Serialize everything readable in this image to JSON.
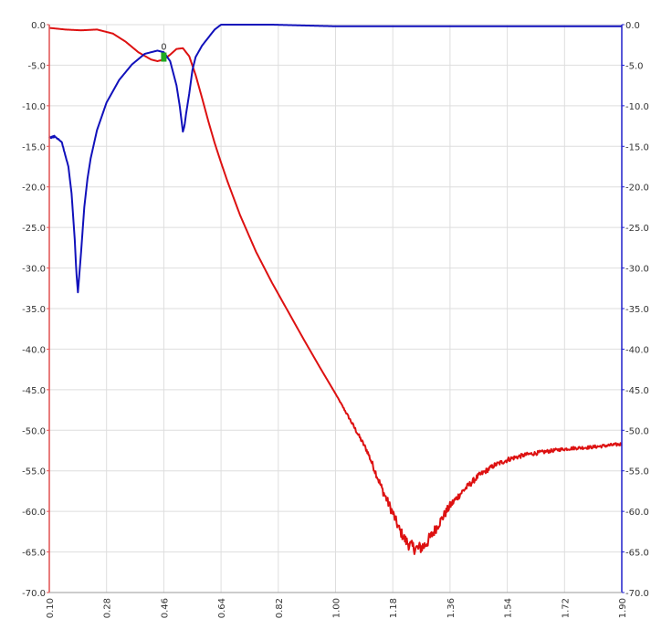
{
  "chart_data": {
    "type": "line",
    "title": "",
    "xlabel": "",
    "ylabel_left": "",
    "ylabel_right": "",
    "grid": true,
    "legend": "none",
    "xlim": [
      0.1,
      1.9
    ],
    "ylim_left": [
      -70,
      0
    ],
    "ylim_right": [
      -70,
      0
    ],
    "x_ticks": [
      "0.10",
      "0.28",
      "0.46",
      "0.64",
      "0.82",
      "1.00",
      "1.18",
      "1.36",
      "1.54",
      "1.72",
      "1.90"
    ],
    "y_ticks_left": [
      "0.0",
      "-5.0",
      "-10.0",
      "-15.0",
      "-20.0",
      "-25.0",
      "-30.0",
      "-35.0",
      "-40.0",
      "-45.0",
      "-50.0",
      "-55.0",
      "-60.0",
      "-65.0",
      "-70.0"
    ],
    "y_ticks_right": [
      "0.0",
      "-5.0",
      "-10.0",
      "-15.0",
      "-20.0",
      "-25.0",
      "-30.0",
      "-35.0",
      "-40.0",
      "-45.0",
      "-50.0",
      "-55.0",
      "-60.0",
      "-65.0",
      "-70.0"
    ],
    "left_axis_color": "#e05050",
    "right_axis_color": "#2020cc",
    "series": [
      {
        "color": "#dd1111",
        "axis": "left",
        "x": [
          0.1,
          0.15,
          0.2,
          0.25,
          0.3,
          0.34,
          0.38,
          0.42,
          0.44,
          0.46,
          0.48,
          0.5,
          0.52,
          0.54,
          0.56,
          0.58,
          0.6,
          0.62,
          0.64,
          0.66,
          0.7,
          0.75,
          0.8,
          0.85,
          0.9,
          0.95,
          1.0,
          1.05,
          1.1,
          1.12,
          1.15,
          1.18,
          1.2,
          1.22,
          1.24,
          1.26,
          1.28,
          1.3,
          1.32,
          1.36,
          1.4,
          1.45,
          1.5,
          1.55,
          1.6,
          1.65,
          1.7,
          1.75,
          1.8,
          1.85,
          1.9
        ],
        "y": [
          -0.4,
          -0.6,
          -0.7,
          -0.6,
          -1.1,
          -2.1,
          -3.4,
          -4.3,
          -4.5,
          -4.3,
          -3.7,
          -3.0,
          -2.9,
          -3.9,
          -6.2,
          -9.0,
          -11.9,
          -14.6,
          -17.0,
          -19.3,
          -23.5,
          -28.0,
          -31.8,
          -35.3,
          -38.8,
          -42.2,
          -45.5,
          -49.0,
          -52.6,
          -54.6,
          -57.6,
          -60.2,
          -62.2,
          -63.6,
          -64.4,
          -64.6,
          -64.2,
          -63.1,
          -61.8,
          -59.3,
          -57.5,
          -55.6,
          -54.3,
          -53.5,
          -53.0,
          -52.7,
          -52.4,
          -52.2,
          -52.1,
          -51.9,
          -51.7
        ],
        "noise": [
          0,
          0,
          0,
          0,
          0,
          0,
          0,
          0,
          0,
          0,
          0,
          0,
          0,
          0,
          0,
          0,
          0,
          0,
          0,
          0,
          0,
          0,
          0,
          0,
          0,
          0,
          0,
          0.2,
          0.3,
          0.4,
          0.5,
          0.6,
          0.6,
          0.7,
          0.8,
          0.8,
          0.8,
          0.7,
          0.6,
          0.5,
          0.4,
          0.35,
          0.3,
          0.3,
          0.25,
          0.25,
          0.2,
          0.2,
          0.2,
          0.2,
          0.2
        ]
      },
      {
        "color": "#1111bb",
        "axis": "right",
        "x": [
          0.1,
          0.12,
          0.14,
          0.16,
          0.17,
          0.18,
          0.185,
          0.19,
          0.2,
          0.21,
          0.22,
          0.23,
          0.25,
          0.28,
          0.32,
          0.36,
          0.4,
          0.44,
          0.46,
          0.48,
          0.5,
          0.51,
          0.52,
          0.525,
          0.53,
          0.54,
          0.55,
          0.56,
          0.58,
          0.6,
          0.62,
          0.64,
          0.66,
          0.7,
          0.8,
          0.9,
          1.0,
          1.2,
          1.4,
          1.6,
          1.8,
          1.9
        ],
        "y": [
          -13.9,
          -13.8,
          -14.6,
          -17.5,
          -20.8,
          -26.5,
          -30.5,
          -33.0,
          -28.0,
          -22.5,
          -19.0,
          -16.5,
          -13.0,
          -9.6,
          -6.8,
          -4.9,
          -3.6,
          -3.2,
          -3.4,
          -4.5,
          -7.5,
          -10.0,
          -13.2,
          -12.5,
          -11.0,
          -8.5,
          -5.6,
          -4.0,
          -2.6,
          -1.6,
          -0.6,
          0.0,
          0.0,
          0.0,
          0.0,
          -0.1,
          -0.2,
          -0.2,
          -0.2,
          -0.2,
          -0.2,
          -0.2
        ],
        "noise": [
          0.1,
          0.15,
          0.1,
          0,
          0,
          0,
          0,
          0,
          0,
          0,
          0,
          0,
          0,
          0,
          0,
          0,
          0,
          0,
          0,
          0,
          0,
          0,
          0,
          0,
          0,
          0,
          0,
          0,
          0,
          0,
          0,
          0,
          0,
          0,
          0,
          0,
          0,
          0,
          0,
          0,
          0,
          0
        ]
      }
    ],
    "marker": {
      "x": 0.46,
      "y": -4.0,
      "label": "0",
      "color": "#22aa22"
    }
  }
}
